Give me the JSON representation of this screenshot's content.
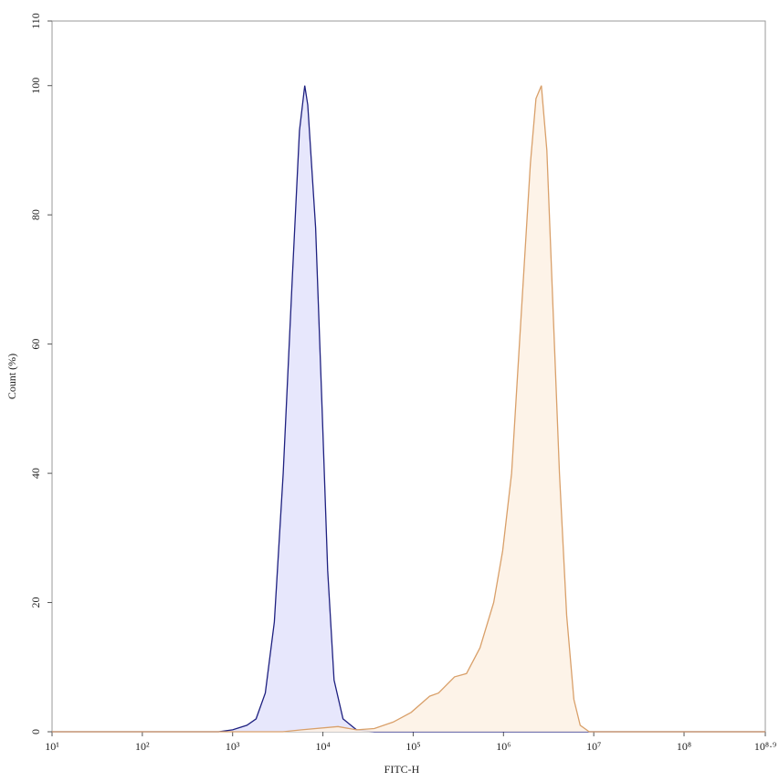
{
  "chart_data": {
    "type": "area",
    "xlabel": "FITC-H",
    "ylabel": "Count (%)",
    "xscale": "log",
    "xlim": [
      10,
      794328234.7
    ],
    "xticks": [
      {
        "value": 10,
        "label": "10¹"
      },
      {
        "value": 100,
        "label": "10²"
      },
      {
        "value": 1000,
        "label": "10³"
      },
      {
        "value": 10000,
        "label": "10⁴"
      },
      {
        "value": 100000,
        "label": "10⁵"
      },
      {
        "value": 1000000,
        "label": "10⁶"
      },
      {
        "value": 10000000,
        "label": "10⁷"
      },
      {
        "value": 100000000,
        "label": "10⁸"
      },
      {
        "value": 794328234.7,
        "label": "10⁸·⁹"
      }
    ],
    "ylim": [
      0,
      110
    ],
    "yticks": [
      0,
      20,
      40,
      60,
      80,
      100,
      110
    ],
    "series": [
      {
        "color": "#1e2080",
        "fill": "#e3e3fb",
        "x": [
          10,
          700,
          1000,
          1440,
          1820,
          2300,
          2900,
          3630,
          4570,
          5500,
          6300,
          6800,
          8300,
          9800,
          11300,
          13300,
          16700,
          23600,
          37000,
          794328234.7
        ],
        "values": [
          0,
          0,
          0.3,
          1,
          2,
          6,
          17,
          40,
          70,
          93,
          100,
          97,
          78,
          50,
          25,
          8,
          2,
          0.3,
          0,
          0
        ]
      },
      {
        "color": "#d9a06a",
        "fill": "#fdf1e4",
        "x": [
          10,
          3600,
          5800,
          14700,
          23600,
          37000,
          60000,
          95000,
          152000,
          191000,
          287000,
          389000,
          550000,
          780000,
          980000,
          1230000,
          1580000,
          1990000,
          2290000,
          2630000,
          3020000,
          3550000,
          4170000,
          5010000,
          6030000,
          7080000,
          8910000,
          794328234.7
        ],
        "values": [
          0,
          0,
          0.3,
          0.8,
          0.3,
          0.5,
          1.5,
          3,
          5.5,
          6,
          8.5,
          9,
          13,
          20,
          28,
          40,
          65,
          88,
          98,
          100,
          90,
          65,
          40,
          18,
          5,
          1,
          0,
          0
        ]
      }
    ]
  }
}
